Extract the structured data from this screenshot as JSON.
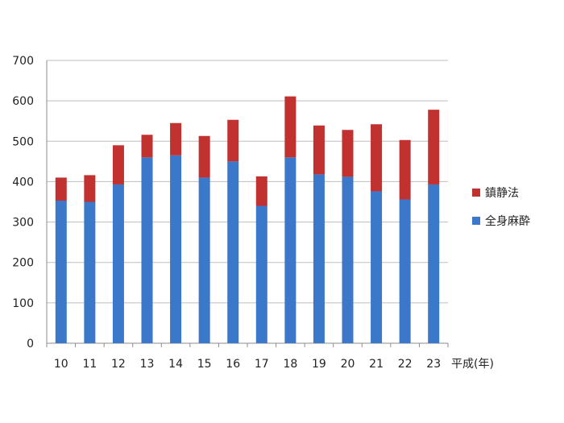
{
  "chart_data": {
    "type": "bar",
    "stacked": true,
    "categories": [
      "10",
      "11",
      "12",
      "13",
      "14",
      "15",
      "16",
      "17",
      "18",
      "19",
      "20",
      "21",
      "22",
      "23"
    ],
    "series": [
      {
        "name": "全身麻酔",
        "color": "#3b78c9",
        "values": [
          353,
          350,
          393,
          460,
          465,
          410,
          450,
          340,
          460,
          418,
          412,
          376,
          356,
          393
        ]
      },
      {
        "name": "鎮静法",
        "color": "#c0312f",
        "values": [
          57,
          66,
          97,
          56,
          80,
          103,
          103,
          73,
          151,
          121,
          116,
          166,
          147,
          185
        ]
      }
    ],
    "xlabel": "平成(年)",
    "ylabel": "",
    "ylim": [
      0,
      700
    ],
    "yticks": [
      0,
      100,
      200,
      300,
      400,
      500,
      600,
      700
    ],
    "grid": true,
    "legend": {
      "position": "right",
      "items": [
        "鎮静法",
        "全身麻酔"
      ]
    }
  }
}
